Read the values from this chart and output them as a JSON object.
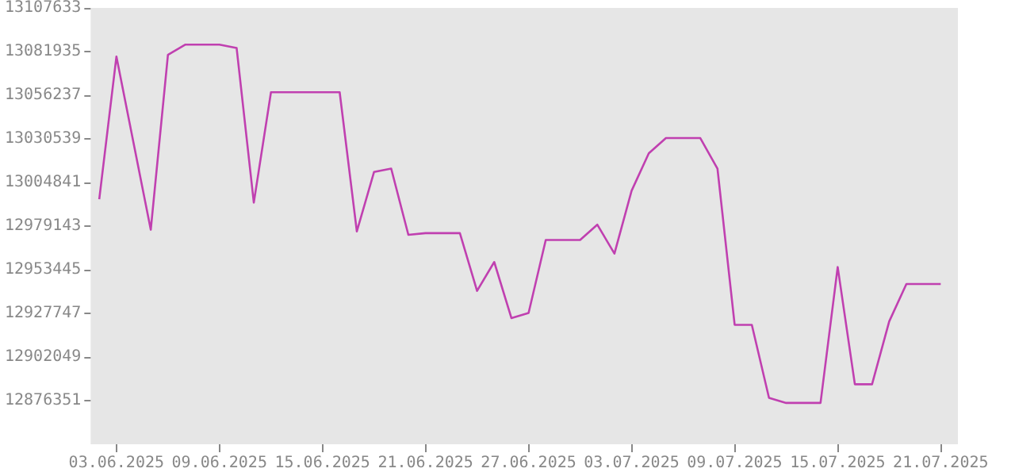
{
  "chart_data": {
    "type": "line",
    "x": [
      "2025-06-02",
      "2025-06-03",
      "2025-06-04",
      "2025-06-05",
      "2025-06-06",
      "2025-06-07",
      "2025-06-08",
      "2025-06-09",
      "2025-06-10",
      "2025-06-11",
      "2025-06-12",
      "2025-06-13",
      "2025-06-14",
      "2025-06-15",
      "2025-06-16",
      "2025-06-17",
      "2025-06-18",
      "2025-06-19",
      "2025-06-20",
      "2025-06-21",
      "2025-06-22",
      "2025-06-23",
      "2025-06-24",
      "2025-06-25",
      "2025-06-26",
      "2025-06-27",
      "2025-06-28",
      "2025-06-29",
      "2025-06-30",
      "2025-07-01",
      "2025-07-02",
      "2025-07-03",
      "2025-07-04",
      "2025-07-05",
      "2025-07-06",
      "2025-07-07",
      "2025-07-08",
      "2025-07-09",
      "2025-07-10",
      "2025-07-11",
      "2025-07-12",
      "2025-07-13",
      "2025-07-14",
      "2025-07-15",
      "2025-07-16",
      "2025-07-17",
      "2025-07-18",
      "2025-07-19",
      "2025-07-20",
      "2025-07-21"
    ],
    "series": [
      {
        "color": "#c040b0",
        "values": [
          12995000,
          13079000,
          13028000,
          12977000,
          13080000,
          13086000,
          13086000,
          13086000,
          13084000,
          12993000,
          13058000,
          13058000,
          13058000,
          13058000,
          13058000,
          12976000,
          13011000,
          13013000,
          12974000,
          12975000,
          12975000,
          12975000,
          12941000,
          12958000,
          12925000,
          12928000,
          12971000,
          12971000,
          12971000,
          12980000,
          12963000,
          13000000,
          13022000,
          13031000,
          13031000,
          13031000,
          13013000,
          12921000,
          12921000,
          12878000,
          12875000,
          12875000,
          12875000,
          12955000,
          12886000,
          12886000,
          12923000,
          12945000,
          12945000,
          12945000
        ]
      }
    ],
    "xlim": [
      "2025-06-01T12:00",
      "2025-07-22T00:00"
    ],
    "xticks": [
      {
        "value": "2025-06-03",
        "label": "03.06.2025"
      },
      {
        "value": "2025-06-09",
        "label": "09.06.2025"
      },
      {
        "value": "2025-06-15",
        "label": "15.06.2025"
      },
      {
        "value": "2025-06-21",
        "label": "21.06.2025"
      },
      {
        "value": "2025-06-27",
        "label": "27.06.2025"
      },
      {
        "value": "2025-07-03",
        "label": "03.07.2025"
      },
      {
        "value": "2025-07-09",
        "label": "09.07.2025"
      },
      {
        "value": "2025-07-15",
        "label": "15.07.2025"
      },
      {
        "value": "2025-07-21",
        "label": "21.07.2025"
      }
    ],
    "ylim": [
      12850653,
      13107633
    ],
    "yticks": [
      12876351,
      12902049,
      12927747,
      12953445,
      12979143,
      13004841,
      13030539,
      13056237,
      13081935,
      13107633
    ],
    "grid": false,
    "marker": "none",
    "line_style": "solid"
  }
}
